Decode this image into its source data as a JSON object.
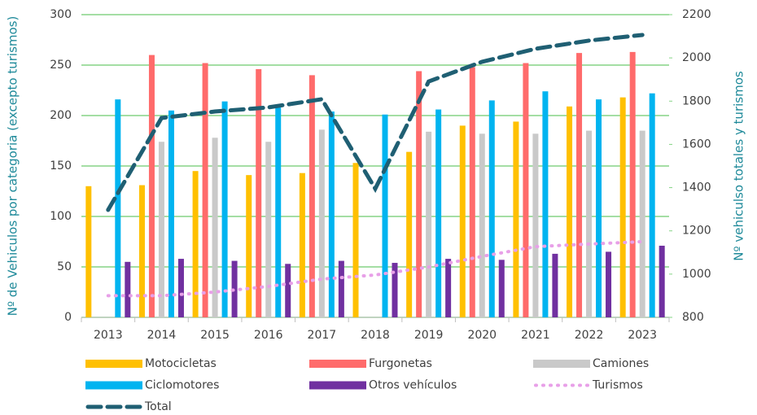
{
  "chart_data": {
    "type": "bar",
    "categories": [
      "2013",
      "2014",
      "2015",
      "2016",
      "2017",
      "2018",
      "2019",
      "2020",
      "2021",
      "2022",
      "2023"
    ],
    "y_label": "Nº de Vehiculos por categoria (excepto turismos)",
    "y2_label": "Nº vehiculso totales y turismos",
    "ylim": [
      0,
      300
    ],
    "yticks": [
      0,
      50,
      100,
      150,
      200,
      250,
      300
    ],
    "y2lim": [
      800,
      2200
    ],
    "y2ticks": [
      800,
      1000,
      1200,
      1400,
      1600,
      1800,
      2000,
      2200
    ],
    "grid": true,
    "series": [
      {
        "name": "Motocicletas",
        "type": "bar",
        "color": "#ffc000",
        "values": [
          130,
          131,
          145,
          141,
          143,
          153,
          164,
          190,
          194,
          209,
          218
        ]
      },
      {
        "name": "Furgonetas",
        "type": "bar",
        "color": "#ff6b6b",
        "values": [
          null,
          260,
          252,
          246,
          240,
          null,
          244,
          248,
          252,
          262,
          263
        ]
      },
      {
        "name": "Camiones",
        "type": "bar",
        "color": "#c9c9c9",
        "values": [
          null,
          174,
          178,
          174,
          186,
          null,
          184,
          182,
          182,
          185,
          185
        ]
      },
      {
        "name": "Ciclomotores",
        "type": "bar",
        "color": "#00b4f0",
        "values": [
          216,
          205,
          214,
          208,
          204,
          201,
          206,
          215,
          224,
          216,
          222
        ]
      },
      {
        "name": "Otros vehículos",
        "type": "bar",
        "color": "#7030a0",
        "values": [
          55,
          58,
          56,
          53,
          56,
          54,
          58,
          57,
          63,
          65,
          71
        ]
      },
      {
        "name": "Turismos",
        "type": "line",
        "axis": "y2",
        "dash": "dotted",
        "color": "#e8a0e8",
        "values": [
          900,
          900,
          917,
          943,
          977,
          996,
          1033,
          1082,
          1127,
          1139,
          1150
        ]
      },
      {
        "name": "Total",
        "type": "line",
        "axis": "y2",
        "dash": "dashed",
        "color": "#1f5f73",
        "values": [
          1297,
          1722,
          1752,
          1771,
          1809,
          1395,
          1891,
          1982,
          2042,
          2080,
          2106
        ]
      }
    ]
  }
}
